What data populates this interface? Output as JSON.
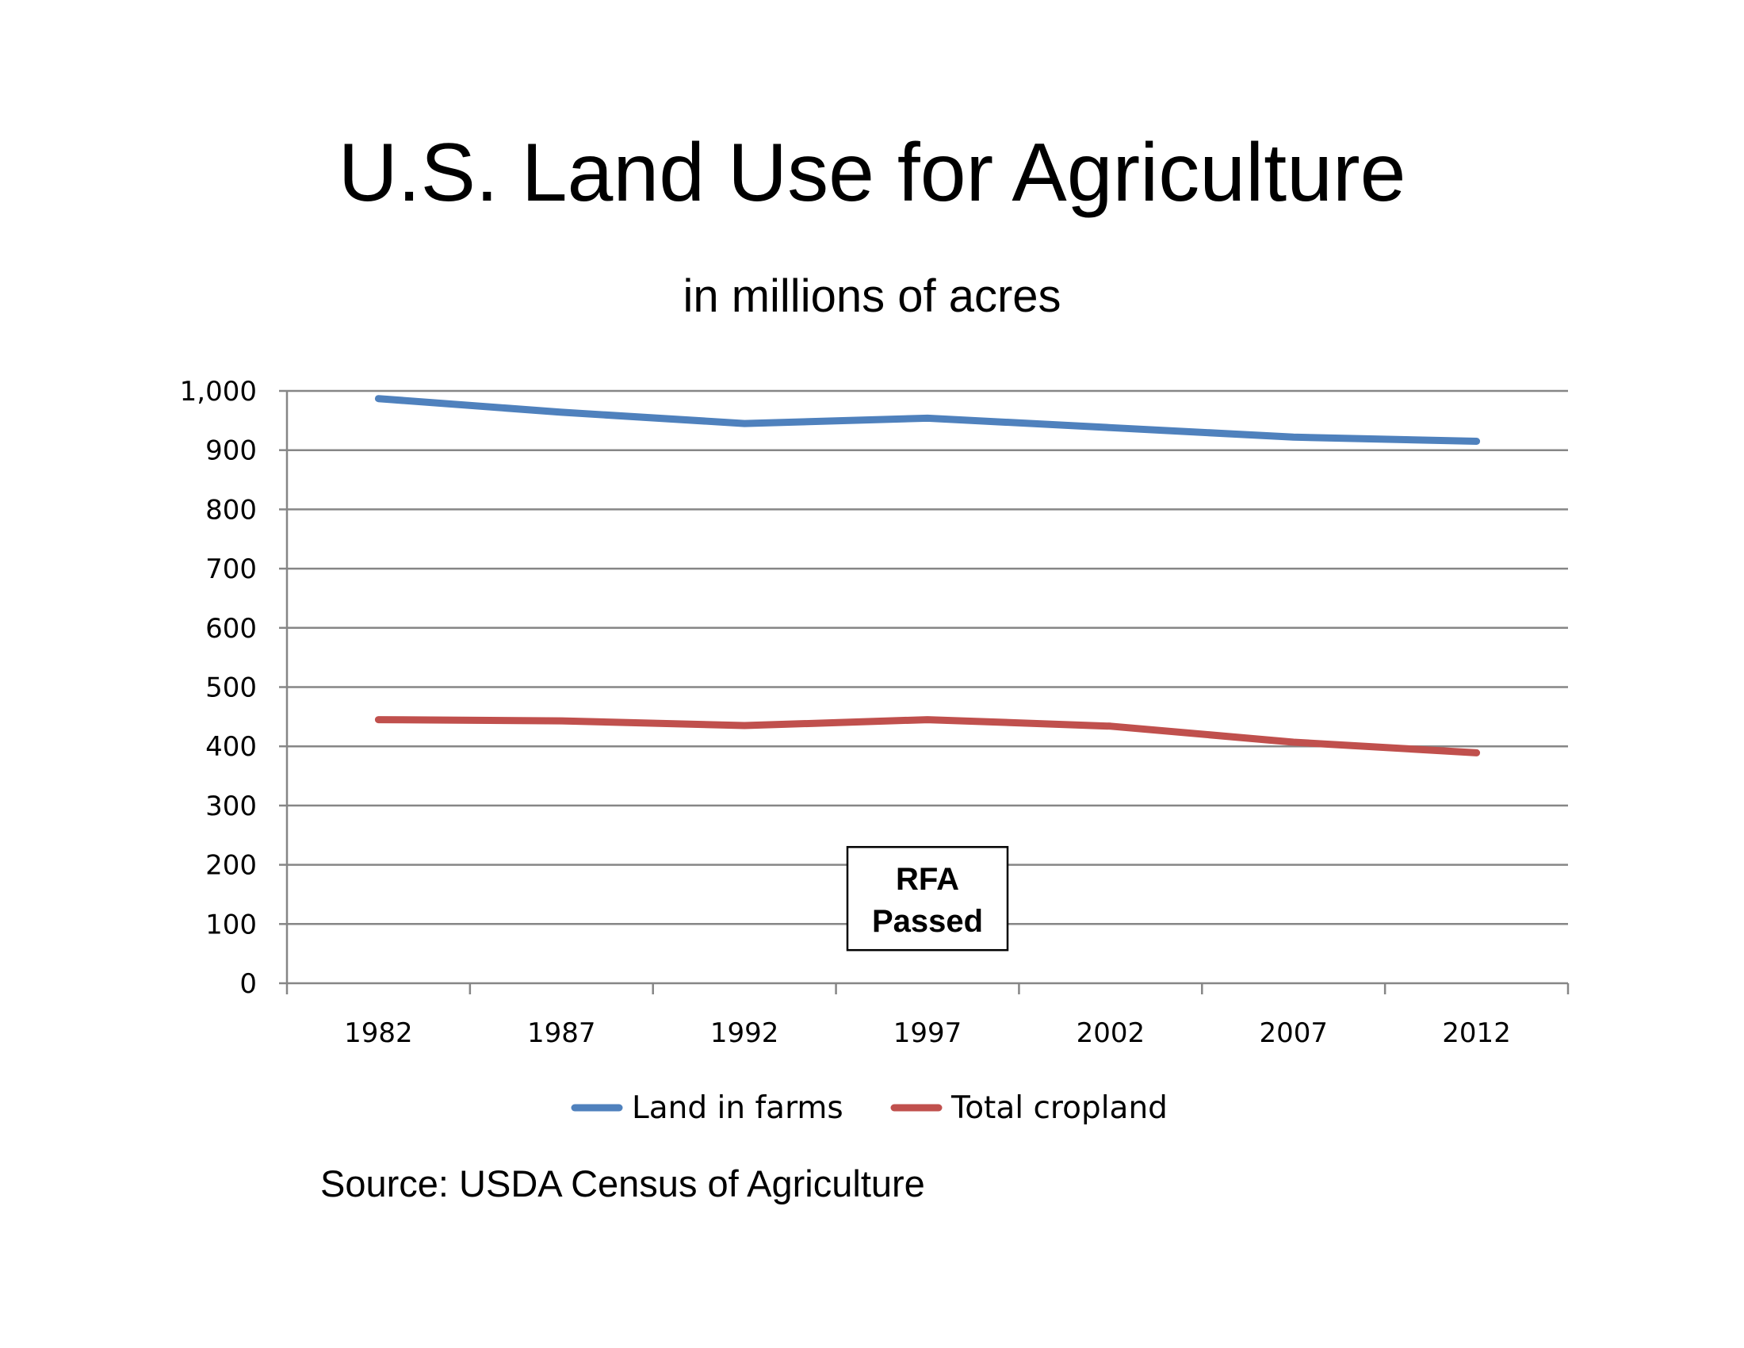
{
  "slide": {
    "title": "U.S. Land Use for Agriculture",
    "subtitle": "in millions of acres",
    "source": "Source: USDA Census of Agriculture"
  },
  "chart_data": {
    "type": "line",
    "title": "U.S. Land Use for Agriculture",
    "subtitle": "in millions of acres",
    "categories": [
      "1982",
      "1987",
      "1992",
      "1997",
      "2002",
      "2007",
      "2012"
    ],
    "series": [
      {
        "name": "Land in farms",
        "color": "#4F81BD",
        "values": [
          987,
          964,
          945,
          954,
          938,
          922,
          915
        ]
      },
      {
        "name": "Total cropland",
        "color": "#C0504D",
        "values": [
          445,
          443,
          435,
          445,
          434,
          407,
          389
        ]
      }
    ],
    "ylim": [
      0,
      1000
    ],
    "y_ticks": [
      0,
      100,
      200,
      300,
      400,
      500,
      600,
      700,
      800,
      900,
      1000
    ],
    "y_tick_labels": [
      "0",
      "100",
      "200",
      "300",
      "400",
      "500",
      "600",
      "700",
      "800",
      "900",
      "1,000"
    ],
    "grid": true,
    "legend_position": "bottom",
    "annotation": {
      "lines": [
        "RFA",
        "Passed"
      ],
      "category": "1997"
    }
  }
}
